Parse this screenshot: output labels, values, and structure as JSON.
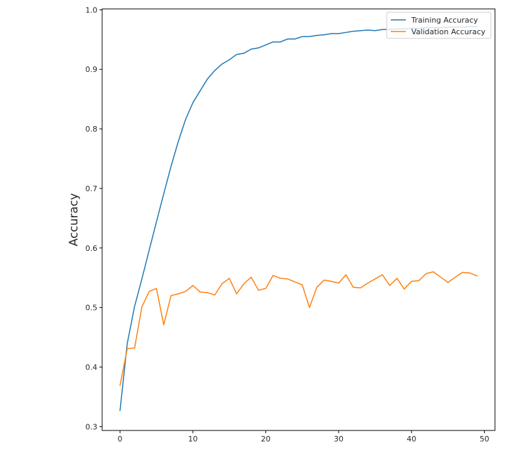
{
  "chart_data": {
    "type": "line",
    "title": "",
    "xlabel": "",
    "ylabel": "Accuracy",
    "xlim": [
      -2.45,
      51.45
    ],
    "ylim": [
      0.2935,
      1.0015
    ],
    "xticks": [
      0,
      10,
      20,
      30,
      40,
      50
    ],
    "yticks": [
      0.3,
      0.4,
      0.5,
      0.6,
      0.7,
      0.8,
      0.9,
      1.0
    ],
    "grid": false,
    "legend_position": "top-right",
    "x": [
      0,
      1,
      2,
      3,
      4,
      5,
      6,
      7,
      8,
      9,
      10,
      11,
      12,
      13,
      14,
      15,
      16,
      17,
      18,
      19,
      20,
      21,
      22,
      23,
      24,
      25,
      26,
      27,
      28,
      29,
      30,
      31,
      32,
      33,
      34,
      35,
      36,
      37,
      38,
      39,
      40,
      41,
      42,
      43,
      44,
      45,
      46,
      47,
      48,
      49
    ],
    "series": [
      {
        "name": "Training Accuracy",
        "color": "#1f77b4",
        "values": [
          0.327,
          0.44,
          0.502,
          0.548,
          0.596,
          0.644,
          0.691,
          0.737,
          0.779,
          0.816,
          0.844,
          0.864,
          0.884,
          0.898,
          0.909,
          0.916,
          0.925,
          0.927,
          0.934,
          0.936,
          0.941,
          0.946,
          0.946,
          0.951,
          0.951,
          0.955,
          0.955,
          0.957,
          0.958,
          0.96,
          0.96,
          0.962,
          0.964,
          0.965,
          0.966,
          0.965,
          0.967,
          0.967,
          0.968,
          0.968,
          0.969,
          0.969,
          0.97,
          0.97,
          0.97,
          0.971,
          0.971,
          0.971,
          0.972,
          0.972
        ]
      },
      {
        "name": "Validation Accuracy",
        "color": "#ff7f0e",
        "values": [
          0.369,
          0.431,
          0.432,
          0.501,
          0.527,
          0.532,
          0.471,
          0.52,
          0.523,
          0.527,
          0.537,
          0.526,
          0.525,
          0.521,
          0.54,
          0.549,
          0.523,
          0.54,
          0.551,
          0.529,
          0.532,
          0.554,
          0.549,
          0.548,
          0.543,
          0.538,
          0.5,
          0.534,
          0.546,
          0.544,
          0.541,
          0.555,
          0.534,
          0.533,
          0.541,
          0.548,
          0.555,
          0.537,
          0.549,
          0.531,
          0.544,
          0.545,
          0.557,
          0.56,
          0.551,
          0.542,
          0.551,
          0.559,
          0.558,
          0.553
        ]
      }
    ]
  }
}
